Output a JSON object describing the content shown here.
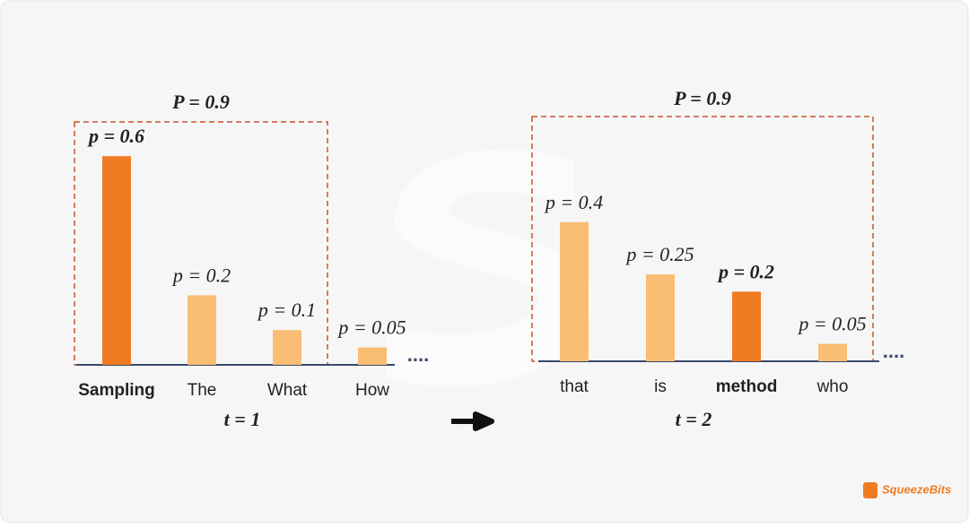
{
  "chart_data": [
    {
      "type": "bar",
      "categories": [
        "Sampling",
        "The",
        "What",
        "How"
      ],
      "values": [
        0.6,
        0.2,
        0.1,
        0.05
      ],
      "value_labels": [
        "p = 0.6",
        "p = 0.2",
        "p = 0.1",
        "p = 0.05"
      ],
      "selected": 0,
      "color": "#f9bd73",
      "selected_color": "#ef7b22",
      "threshold": 0.9,
      "threshold_label": "P = 0.9",
      "xlabel": "t = 1",
      "ellipsis": "...."
    },
    {
      "type": "bar",
      "categories": [
        "that",
        "is",
        "method",
        "who"
      ],
      "values": [
        0.4,
        0.25,
        0.2,
        0.05
      ],
      "value_labels": [
        "p = 0.4",
        "p = 0.25",
        "p = 0.2",
        "p = 0.05"
      ],
      "selected": 2,
      "color": "#f9bd73",
      "selected_color": "#ef7b22",
      "threshold": 0.9,
      "threshold_label": "P = 0.9",
      "xlabel": "t = 2",
      "ellipsis": "...."
    }
  ],
  "logo": "SqueezeBits"
}
